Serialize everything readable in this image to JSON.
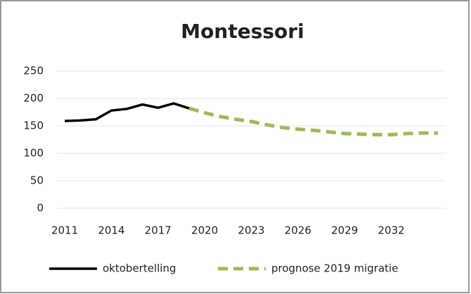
{
  "chart_data": {
    "type": "line",
    "title": "Montessori",
    "x": [
      2011,
      2012,
      2013,
      2014,
      2015,
      2016,
      2017,
      2018,
      2019,
      2020,
      2021,
      2022,
      2023,
      2024,
      2025,
      2026,
      2027,
      2028,
      2029,
      2030,
      2031,
      2032,
      2033,
      2034,
      2035
    ],
    "series": [
      {
        "name": "oktobertelling",
        "color": "#000000",
        "dashed": false,
        "values": [
          159,
          160,
          162,
          178,
          181,
          189,
          183,
          191,
          182,
          null,
          null,
          null,
          null,
          null,
          null,
          null,
          null,
          null,
          null,
          null,
          null,
          null,
          null,
          null,
          null
        ]
      },
      {
        "name": "prognose 2019 migratie",
        "color": "#9bbb59",
        "dashed": true,
        "values": [
          null,
          null,
          null,
          null,
          null,
          null,
          null,
          null,
          182,
          174,
          167,
          162,
          158,
          152,
          147,
          144,
          142,
          139,
          136,
          135,
          134,
          134,
          136,
          137,
          137
        ]
      }
    ],
    "xlim": [
      2010.5,
      2035.5
    ],
    "xticks": [
      2011,
      2014,
      2017,
      2020,
      2023,
      2026,
      2029,
      2032
    ],
    "ylim": [
      0,
      250
    ],
    "yticks": [
      0,
      50,
      100,
      150,
      200,
      250
    ],
    "grid": true,
    "legend": "bottom"
  }
}
